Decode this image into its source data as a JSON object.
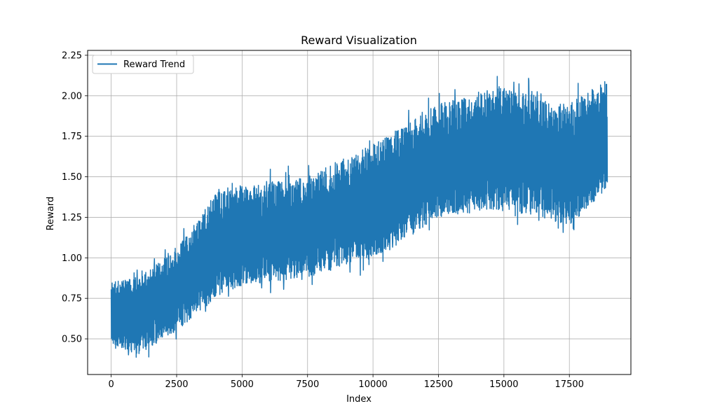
{
  "chart_data": {
    "type": "line",
    "title": "Reward Visualization",
    "xlabel": "Index",
    "ylabel": "Reward",
    "xlim": [
      -900,
      19850
    ],
    "ylim": [
      0.28,
      2.28
    ],
    "x_ticks": [
      0,
      2500,
      5000,
      7500,
      10000,
      12500,
      15000,
      17500
    ],
    "x_tick_labels": [
      "0",
      "2500",
      "5000",
      "7500",
      "10000",
      "12500",
      "15000",
      "17500"
    ],
    "y_ticks": [
      0.5,
      0.75,
      1.0,
      1.25,
      1.5,
      1.75,
      2.0,
      2.25
    ],
    "y_tick_labels": [
      "0.50",
      "0.75",
      "1.00",
      "1.25",
      "1.50",
      "1.75",
      "2.00",
      "2.25"
    ],
    "grid": true,
    "legend_position": "top-left",
    "series": [
      {
        "name": "Reward Trend",
        "color": "#1f77b4",
        "x_start": 0,
        "x_end": 18950,
        "trend": {
          "x": [
            0,
            1000,
            2500,
            4000,
            5000,
            7500,
            10000,
            12500,
            15000,
            17500,
            18950
          ],
          "mean": [
            0.63,
            0.63,
            0.8,
            1.05,
            1.1,
            1.18,
            1.35,
            1.55,
            1.65,
            1.57,
            1.7
          ],
          "low": [
            0.47,
            0.4,
            0.55,
            0.75,
            0.83,
            0.88,
            1.0,
            1.25,
            1.3,
            1.2,
            1.42
          ],
          "high": [
            0.85,
            0.88,
            1.05,
            1.4,
            1.45,
            1.5,
            1.7,
            1.95,
            2.05,
            1.95,
            2.1
          ]
        }
      }
    ]
  }
}
